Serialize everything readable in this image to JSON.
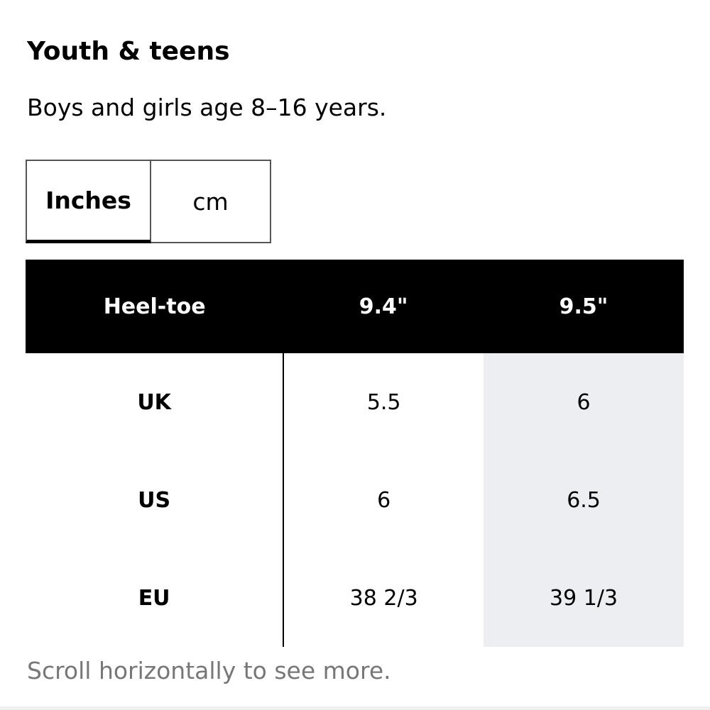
{
  "title": "Youth & teens",
  "subtitle": "Boys and girls age 8–16 years.",
  "tabs": [
    "Inches",
    "cm"
  ],
  "table": {
    "header": [
      "Heel-toe",
      "9.4\"",
      "9.5\""
    ],
    "rows": [
      [
        "UK",
        "5.5",
        "6"
      ],
      [
        "US",
        "6",
        "6.5"
      ],
      [
        "EU",
        "38 2/3",
        "39 1/3"
      ]
    ]
  },
  "note": "Scroll horizontally to see more."
}
